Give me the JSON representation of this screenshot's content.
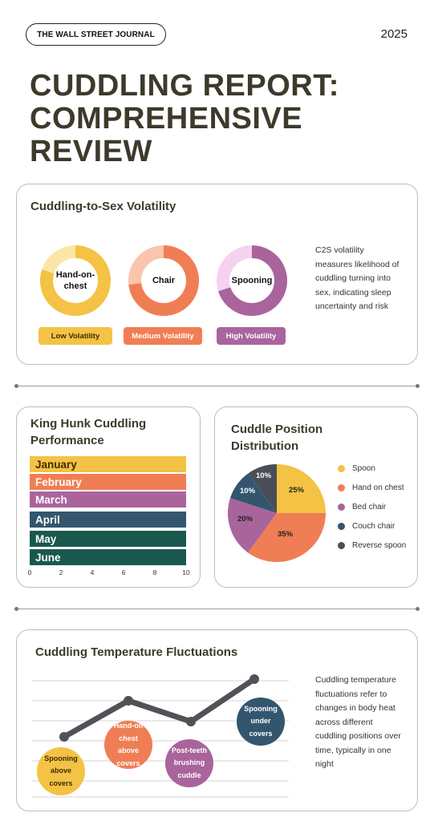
{
  "header": {
    "brand": "THE WALL STREET JOURNAL",
    "year": "2025",
    "title": "CUDDLING REPORT: COMPREHENSIVE REVIEW"
  },
  "volatility": {
    "title": "Cuddling-to-Sex Volatility",
    "description": "C2S volatility measures likelihood of cuddling turning into sex, indicating sleep uncertainty and risk",
    "donuts": [
      {
        "label": "Hand-on-chest",
        "level": "Low Volatility",
        "fill_percent": 80,
        "color": "#f4c245",
        "light_color": "#fbe6a8"
      },
      {
        "label": "Chair",
        "level": "Medium Volatility",
        "fill_percent": 73,
        "color": "#f07e54",
        "light_color": "#f9c5ad"
      },
      {
        "label": "Spooning",
        "level": "High Volatility",
        "fill_percent": 70,
        "color": "#a9649c",
        "light_color": "#f6d2f0"
      }
    ]
  },
  "performance": {
    "title": "King Hunk Cuddling Performance",
    "months": [
      {
        "label": "January",
        "value": 10,
        "color": "#f4c245"
      },
      {
        "label": "February",
        "value": 10,
        "color": "#f07e54"
      },
      {
        "label": "March",
        "value": 10,
        "color": "#a9649c"
      },
      {
        "label": "April",
        "value": 10,
        "color": "#33566e"
      },
      {
        "label": "May",
        "value": 10,
        "color": "#19584f"
      },
      {
        "label": "June",
        "value": 10,
        "color": "#19584f"
      }
    ],
    "ticks": [
      "0",
      "2",
      "4",
      "6",
      "8",
      "10"
    ]
  },
  "distribution": {
    "title": "Cuddle Position Distribution",
    "slice_labels": [
      "25%",
      "35%",
      "20%",
      "10%",
      "10%"
    ]
  },
  "chart_data": {
    "type": "pie",
    "title": "Cuddle Position Distribution",
    "categories": [
      "Spoon",
      "Hand on chest",
      "Bed chair",
      "Couch chair",
      "Reverse spoon"
    ],
    "values": [
      25,
      35,
      20,
      10,
      10
    ],
    "colors": [
      "#f4c245",
      "#f07e54",
      "#a9649c",
      "#33566e",
      "#4a4e57"
    ],
    "legend": "right"
  },
  "temperature": {
    "title": "Cuddling Temperature Fluctuations",
    "description": "Cuddling temperature fluctuations refer to changes in body heat across different cuddling positions over time, typically in one night",
    "points": [
      {
        "label": "Spooning above covers",
        "level": 1,
        "color": "#f4c245"
      },
      {
        "label": "Hand-on chest above covers",
        "level": 3,
        "color": "#f07e54"
      },
      {
        "label": "Post-teeth brushing cuddle",
        "level": 2,
        "color": "#a9649c"
      },
      {
        "label": "Spooning under covers",
        "level": 4,
        "color": "#33566e"
      }
    ]
  }
}
